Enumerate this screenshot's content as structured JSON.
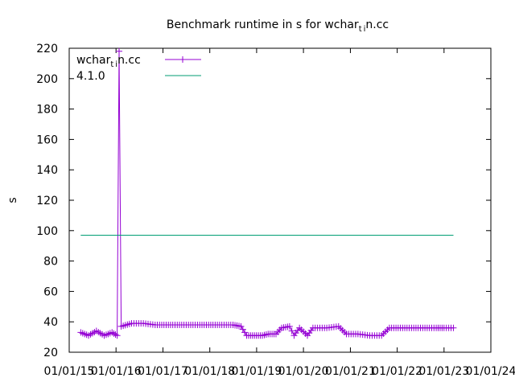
{
  "chart_data": {
    "type": "line",
    "title": {
      "text": "Benchmark runtime in s for wchar",
      "sub1": "t",
      "sub2": "i",
      "tail": "n.cc"
    },
    "ylabel": "s",
    "xlabel": "",
    "ylim": [
      20,
      220
    ],
    "yticks": [
      20,
      40,
      60,
      80,
      100,
      120,
      140,
      160,
      180,
      200,
      220
    ],
    "xlim": [
      "2015-01-01",
      "2024-01-01"
    ],
    "xticks": [
      "01/01/15",
      "01/01/16",
      "01/01/17",
      "01/01/18",
      "01/01/19",
      "01/01/20",
      "01/01/21",
      "01/01/22",
      "01/01/23",
      "01/01/24"
    ],
    "grid": false,
    "legend_position": "top-left",
    "series": [
      {
        "name": "wchar_tin.cc",
        "legend": {
          "main": "wchar",
          "sub1": "t",
          "sub2": "i",
          "tail": "n.cc"
        },
        "color": "#9400d3",
        "marker": "plus",
        "points": [
          [
            "2015-04-01",
            33
          ],
          [
            "2015-06-01",
            31
          ],
          [
            "2015-08-01",
            34
          ],
          [
            "2015-10-01",
            31
          ],
          [
            "2015-12-01",
            33
          ],
          [
            "2016-01-10",
            31
          ],
          [
            "2016-01-25",
            218
          ],
          [
            "2016-02-10",
            37
          ],
          [
            "2016-05-01",
            39
          ],
          [
            "2016-08-01",
            39
          ],
          [
            "2016-11-01",
            38
          ],
          [
            "2017-03-01",
            38
          ],
          [
            "2017-07-01",
            38
          ],
          [
            "2017-11-01",
            38
          ],
          [
            "2018-03-01",
            38
          ],
          [
            "2018-07-01",
            38
          ],
          [
            "2018-09-01",
            37
          ],
          [
            "2018-10-15",
            31
          ],
          [
            "2018-12-15",
            31
          ],
          [
            "2019-02-15",
            31
          ],
          [
            "2019-04-01",
            32
          ],
          [
            "2019-06-01",
            32
          ],
          [
            "2019-07-15",
            36
          ],
          [
            "2019-09-15",
            37
          ],
          [
            "2019-10-20",
            31
          ],
          [
            "2019-12-01",
            36
          ],
          [
            "2020-02-01",
            31
          ],
          [
            "2020-03-15",
            36
          ],
          [
            "2020-07-01",
            36
          ],
          [
            "2020-10-01",
            37
          ],
          [
            "2020-12-01",
            32
          ],
          [
            "2021-03-01",
            32
          ],
          [
            "2021-06-01",
            31
          ],
          [
            "2021-09-01",
            31
          ],
          [
            "2021-11-01",
            36
          ],
          [
            "2022-03-01",
            36
          ],
          [
            "2022-07-01",
            36
          ],
          [
            "2022-11-01",
            36
          ],
          [
            "2023-01-01",
            36
          ],
          [
            "2023-03-15",
            36
          ]
        ]
      },
      {
        "name": "4.1.0",
        "legend": {
          "main": "4.1.0"
        },
        "color": "#009e73",
        "marker": "none",
        "points": [
          [
            "2015-04-01",
            97
          ],
          [
            "2023-03-15",
            97
          ]
        ]
      }
    ]
  }
}
